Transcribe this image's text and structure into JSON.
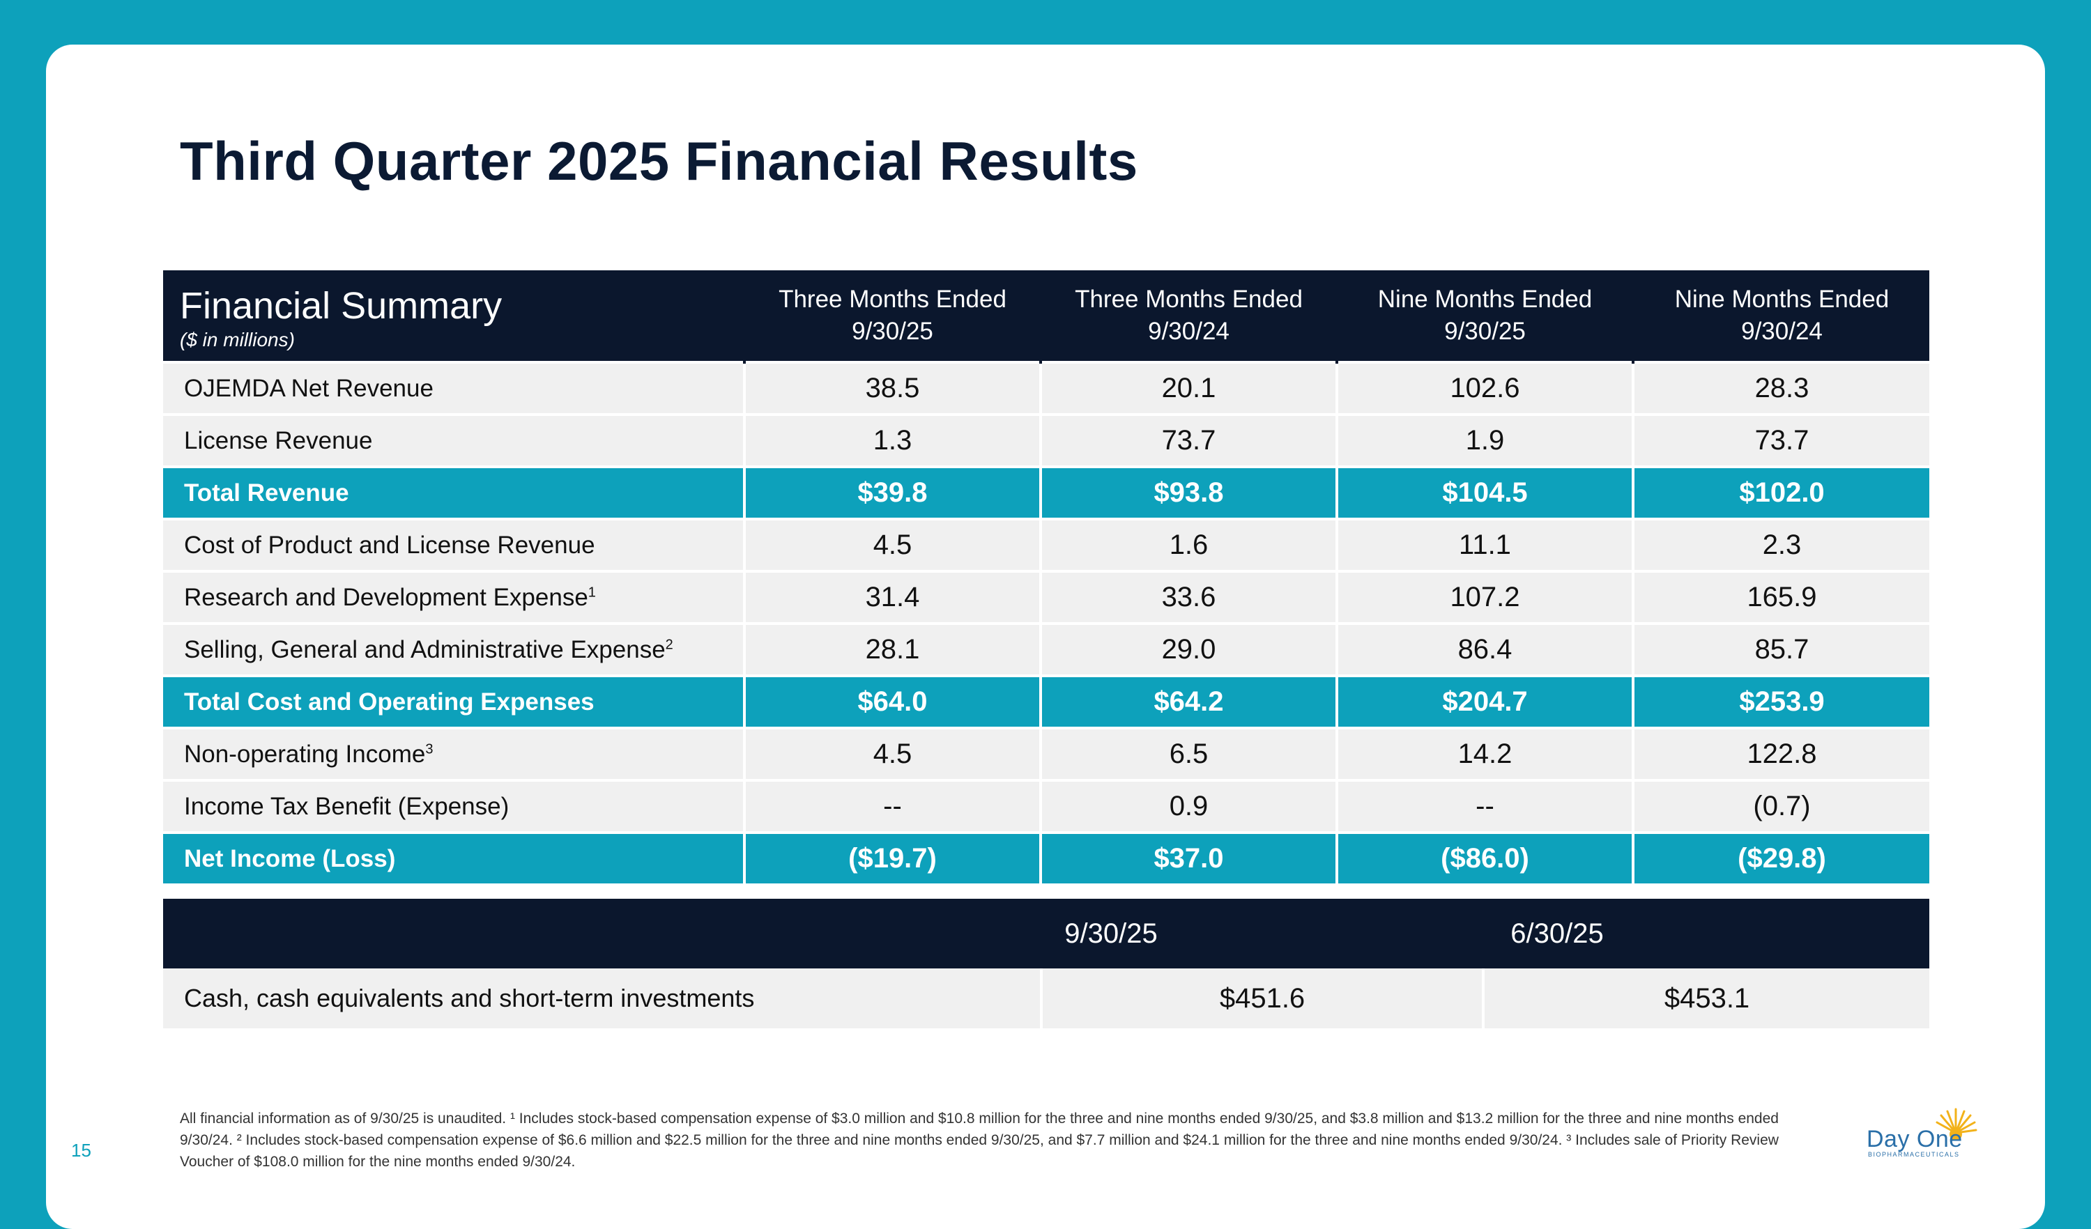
{
  "title": "Third Quarter 2025 Financial Results",
  "summary": {
    "heading": "Financial Summary",
    "subheading": "($ in millions)",
    "columns": [
      {
        "line1": "Three Months Ended",
        "line2": "9/30/25"
      },
      {
        "line1": "Three Months Ended",
        "line2": "9/30/24"
      },
      {
        "line1": "Nine Months Ended",
        "line2": "9/30/25"
      },
      {
        "line1": "Nine Months Ended",
        "line2": "9/30/24"
      }
    ],
    "rows": [
      {
        "label": "OJEMDA Net Revenue",
        "values": [
          "38.5",
          "20.1",
          "102.6",
          "28.3"
        ]
      },
      {
        "label": "License Revenue",
        "values": [
          "1.3",
          "73.7",
          "1.9",
          "73.7"
        ]
      },
      {
        "label": "Total Revenue",
        "values": [
          "$39.8",
          "$93.8",
          "$104.5",
          "$102.0"
        ]
      },
      {
        "label": "Cost of Product and License Revenue",
        "values": [
          "4.5",
          "1.6",
          "11.1",
          "2.3"
        ]
      },
      {
        "label": "Research and Development Expense",
        "sup": "1",
        "values": [
          "31.4",
          "33.6",
          "107.2",
          "165.9"
        ]
      },
      {
        "label": "Selling, General and Administrative Expense",
        "sup": "2",
        "values": [
          "28.1",
          "29.0",
          "86.4",
          "85.7"
        ]
      },
      {
        "label": "Total Cost and Operating Expenses",
        "values": [
          "$64.0",
          "$64.2",
          "$204.7",
          "$253.9"
        ]
      },
      {
        "label": "Non-operating Income",
        "sup": "3",
        "values": [
          "4.5",
          "6.5",
          "14.2",
          "122.8"
        ]
      },
      {
        "label": "Income Tax Benefit (Expense)",
        "values": [
          "--",
          "0.9",
          "--",
          "(0.7)"
        ]
      },
      {
        "label": "Net Income (Loss)",
        "values": [
          "($19.7)",
          "$37.0",
          "($86.0)",
          "($29.8)"
        ]
      }
    ]
  },
  "cash": {
    "columns": [
      "9/30/25",
      "6/30/25"
    ],
    "label": "Cash, cash equivalents and short-term investments",
    "values": [
      "$451.6",
      "$453.1"
    ]
  },
  "footnote": "All financial information as of 9/30/25 is unaudited. ¹ Includes stock-based compensation expense of $3.0 million and $10.8 million for the three and nine months ended 9/30/25, and $3.8 million and $13.2 million for the three and nine months ended 9/30/24. ² Includes stock-based compensation expense of $6.6 million and $22.5 million for the three and nine months ended 9/30/25, and $7.7 million and $24.1 million for the three and nine months ended 9/30/24. ³ Includes sale of Priority Review Voucher of $108.0 million for the nine months ended 9/30/24.",
  "page_number": "15",
  "logo": {
    "name": "Day One",
    "tagline": "BIOPHARMACEUTICALS"
  },
  "colors": {
    "teal": "#0da1bb",
    "navy": "#0b172d",
    "row": "#f0f0f0"
  }
}
